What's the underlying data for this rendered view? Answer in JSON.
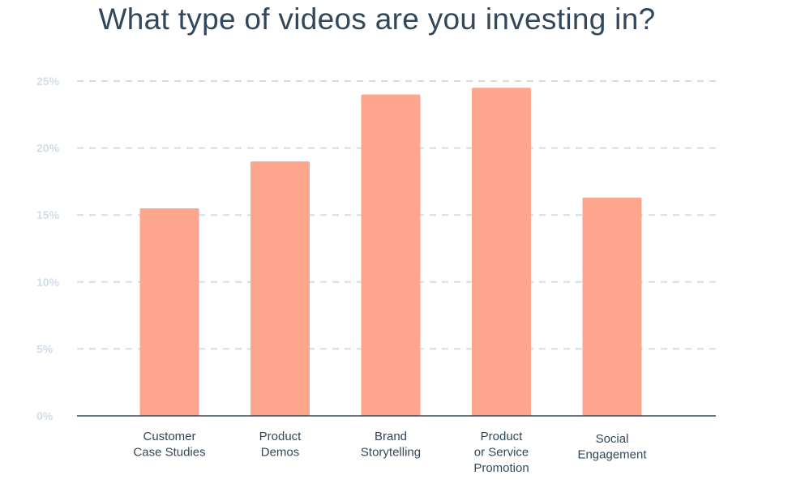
{
  "chart_data": {
    "type": "bar",
    "title": "What type of videos are you investing in?",
    "categories": [
      [
        "Customer",
        "Case Studies"
      ],
      [
        "Product",
        "Demos"
      ],
      [
        "Brand",
        "Storytelling"
      ],
      [
        "Product",
        "or Service",
        "Promotion"
      ],
      [
        "Social",
        "Engagement"
      ]
    ],
    "values": [
      15.5,
      19,
      24,
      24.5,
      16.3
    ],
    "yticks": [
      "0%",
      "5%",
      "10%",
      "15%",
      "20%",
      "25%"
    ],
    "ylim": [
      0,
      25
    ],
    "ytick_step": 5,
    "xlabel": "",
    "ylabel": "",
    "grid": true,
    "legend": "none",
    "bar_color": "#fea58e",
    "axis_color": "#33475b",
    "grid_color": "#d3dde8",
    "tick_label_color": "#d3dde8",
    "title_color": "#33475b"
  }
}
